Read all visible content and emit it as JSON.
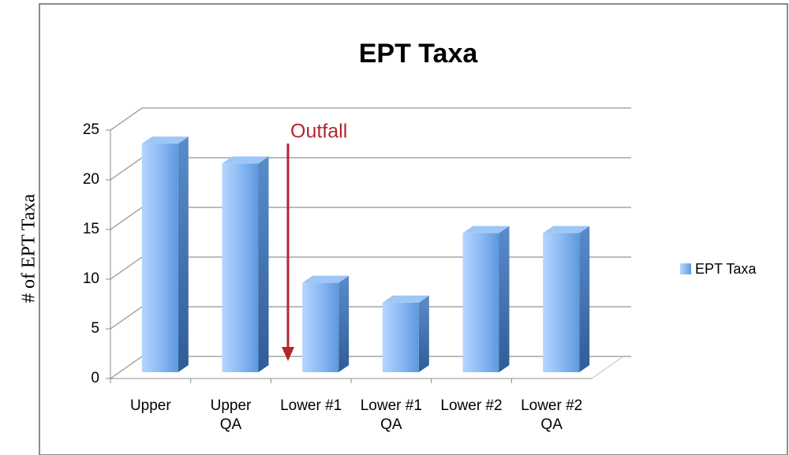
{
  "chart_data": {
    "type": "bar",
    "title": "EPT Taxa",
    "y_label": "# of EPT Taxa",
    "annotation": "Outfall",
    "categories": [
      "Upper",
      "Upper QA",
      "Lower #1",
      "Lower #1 QA",
      "Lower #2",
      "Lower #2 QA"
    ],
    "series": [
      {
        "name": "EPT Taxa",
        "color": "#7fb0ee",
        "values": [
          23,
          21,
          9,
          7,
          14,
          14
        ]
      }
    ],
    "ylim": [
      0,
      25
    ],
    "yticks": [
      0,
      5,
      10,
      15,
      20,
      25
    ],
    "grid": true,
    "legend": "right"
  }
}
